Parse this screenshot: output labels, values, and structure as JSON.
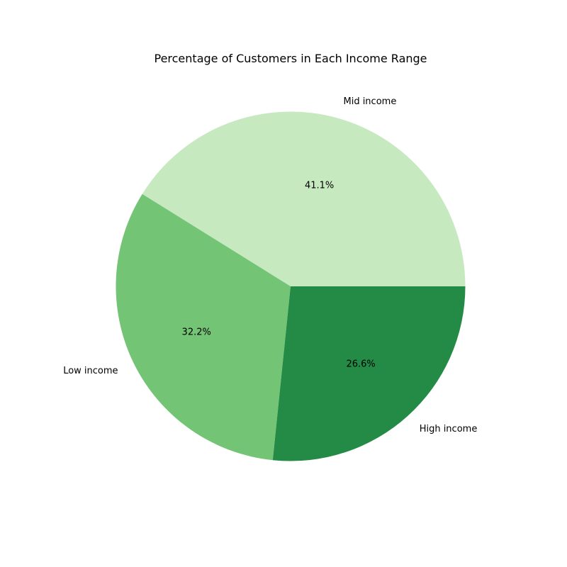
{
  "chart_data": {
    "type": "pie",
    "title": "Percentage of Customers in Each Income Range",
    "categories": [
      "Mid income",
      "Low income",
      "High income"
    ],
    "values": [
      41.1,
      32.2,
      26.6
    ],
    "value_labels": [
      "41.1%",
      "32.2%",
      "26.6%"
    ],
    "colors": [
      "#c7e9c0",
      "#74c476",
      "#238b45"
    ],
    "start_angle_deg": 0,
    "direction": "counterclockwise",
    "legend": "none"
  }
}
